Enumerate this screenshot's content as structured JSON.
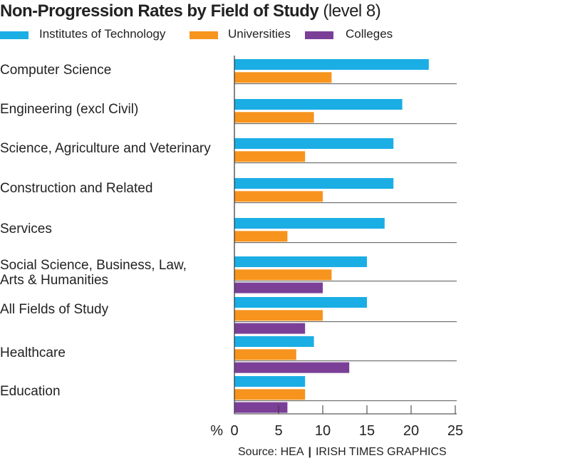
{
  "title": {
    "main": "Non-Progression Rates by Field of Study",
    "sub": "(level 8)"
  },
  "source": {
    "text": "Source: HEA",
    "credit": "IRISH TIMES GRAPHICS"
  },
  "colors": {
    "institutes": "#1aaee5",
    "universities": "#f7941d",
    "colleges": "#7b3f98",
    "axis": "#333333",
    "gridline": "#555555"
  },
  "chart_data": {
    "type": "bar",
    "orientation": "horizontal",
    "title": "Non-Progression Rates by Field of Study (level 8)",
    "xlabel": "%",
    "xlim": [
      0,
      25
    ],
    "xticks": [
      "0",
      "5",
      "10",
      "15",
      "20",
      "25"
    ],
    "legend_position": "top",
    "categories": [
      [
        "Computer Science"
      ],
      [
        "Engineering (excl Civil)"
      ],
      [
        "Science, Agriculture and Veterinary"
      ],
      [
        "Construction and Related"
      ],
      [
        "Services"
      ],
      [
        "Social Science, Business, Law,",
        "Arts & Humanities"
      ],
      [
        "All Fields of Study"
      ],
      [
        "Healthcare"
      ],
      [
        "Education"
      ]
    ],
    "series": [
      {
        "name": "Institutes of Technology",
        "color": "#1aaee5",
        "values": [
          22,
          19,
          18,
          18,
          17,
          15,
          15,
          9,
          8
        ]
      },
      {
        "name": "Universities",
        "color": "#f7941d",
        "values": [
          11,
          9,
          8,
          10,
          6,
          11,
          10,
          7,
          8
        ]
      },
      {
        "name": "Colleges",
        "color": "#7b3f98",
        "values": [
          null,
          null,
          null,
          null,
          null,
          10,
          8,
          13,
          6
        ]
      }
    ]
  }
}
